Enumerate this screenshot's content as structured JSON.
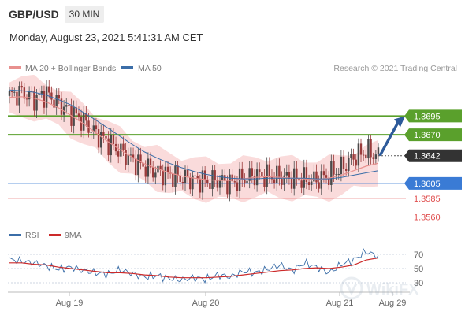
{
  "header": {
    "symbol": "GBP/USD",
    "timeframe": "30 MIN",
    "datetime": "Monday, August 23, 2021 5:41:31 AM CET"
  },
  "colors": {
    "candle_up": "#4a4a4a",
    "candle_down": "#9a3a3a",
    "ma20": "#e8908e",
    "bollinger_fill": "#f9d5d5",
    "ma50": "#3b6ea8",
    "resistance": "#5aa02c",
    "support_blue": "#3a7bd5",
    "support_red": "#e05050",
    "current": "#333333",
    "rsi": "#3b6ea8",
    "rsi_ma": "#cc2a2a"
  },
  "chart_data": [
    {
      "type": "candlestick",
      "legend": [
        "MA 20 + Bollinger Bands",
        "MA 50"
      ],
      "watermark": "Research © 2021 Trading Central",
      "x_ticks": [
        "Aug 19",
        "Aug 20",
        "Aug 21",
        "Aug 29"
      ],
      "ylim": [
        1.355,
        1.3745
      ],
      "levels": [
        {
          "value": 1.3695,
          "label": "1.3695",
          "kind": "resistance"
        },
        {
          "value": 1.367,
          "label": "1.3670",
          "kind": "resistance"
        },
        {
          "value": 1.3642,
          "label": "1.3642",
          "kind": "current"
        },
        {
          "value": 1.3605,
          "label": "1.3605",
          "kind": "support"
        },
        {
          "value": 1.3585,
          "label": "1.3585",
          "kind": "minor"
        },
        {
          "value": 1.356,
          "label": "1.3560",
          "kind": "minor"
        }
      ],
      "close_path": [
        1.3722,
        1.3727,
        1.3718,
        1.3725,
        1.3712,
        1.37,
        1.3688,
        1.3672,
        1.366,
        1.3648,
        1.3636,
        1.3627,
        1.362,
        1.3617,
        1.3612,
        1.361,
        1.3608,
        1.3609,
        1.3605,
        1.3611,
        1.3616,
        1.3615,
        1.3613,
        1.3612,
        1.361,
        1.3609,
        1.3616,
        1.3626,
        1.364,
        1.3648,
        1.3642
      ],
      "ma20": [
        1.372,
        1.3721,
        1.3719,
        1.3714,
        1.3706,
        1.3696,
        1.3685,
        1.3673,
        1.3661,
        1.365,
        1.364,
        1.3631,
        1.3625,
        1.3619,
        1.3615,
        1.3612,
        1.361,
        1.3609,
        1.3609,
        1.3611,
        1.3613,
        1.3614,
        1.3613,
        1.3612,
        1.3611,
        1.361,
        1.3612,
        1.3616,
        1.3622,
        1.3628,
        1.3632
      ],
      "ma50": [
        1.373,
        1.3729,
        1.3727,
        1.3723,
        1.3717,
        1.371,
        1.37,
        1.369,
        1.3679,
        1.3668,
        1.3657,
        1.3647,
        1.3639,
        1.3632,
        1.3626,
        1.3621,
        1.3617,
        1.3614,
        1.3612,
        1.3611,
        1.3611,
        1.3612,
        1.3612,
        1.3612,
        1.3612,
        1.3611,
        1.3611,
        1.3613,
        1.3616,
        1.3619,
        1.3622
      ],
      "arrow": {
        "from": 1.3642,
        "to": 1.3695,
        "direction": "up"
      }
    },
    {
      "type": "line",
      "legend": [
        "RSI",
        "9MA"
      ],
      "y_ticks": [
        70,
        50,
        30
      ],
      "ylim": [
        20,
        80
      ],
      "rsi": [
        63,
        60,
        58,
        54,
        49,
        52,
        47,
        44,
        42,
        48,
        43,
        38,
        40,
        36,
        34,
        37,
        35,
        41,
        38,
        46,
        44,
        49,
        55,
        47,
        58,
        52,
        44,
        56,
        62,
        74,
        67
      ],
      "rsi_ma": [
        58,
        58,
        56,
        55,
        52,
        50,
        48,
        46,
        44,
        44,
        43,
        41,
        40,
        38,
        37,
        37,
        37,
        38,
        39,
        41,
        43,
        45,
        47,
        48,
        50,
        51,
        50,
        52,
        55,
        62,
        65
      ]
    }
  ]
}
